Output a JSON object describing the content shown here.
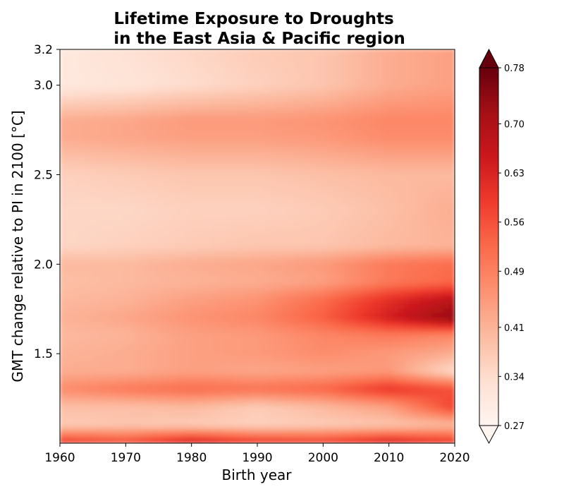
{
  "chart_data": {
    "type": "heatmap",
    "title_lines": [
      "Lifetime Exposure to Droughts",
      "in the East Asia & Pacific region"
    ],
    "xlabel": "Birth year",
    "ylabel": "GMT change relative to PI in 2100 [°C]",
    "x_range": [
      1960,
      2020
    ],
    "y_range": [
      1.0,
      3.2
    ],
    "x_ticks": [
      1960,
      1970,
      1980,
      1990,
      2000,
      2010,
      2020
    ],
    "y_ticks": [
      "1.5",
      "2.0",
      "2.5",
      "3.0",
      "3.2"
    ],
    "colorbar": {
      "colormap": "Reds",
      "ticks": [
        "0.27",
        "0.34",
        "0.41",
        "0.49",
        "0.56",
        "0.63",
        "0.70",
        "0.78"
      ],
      "vmin": 0.27,
      "vmax": 0.78,
      "extend": "both",
      "orientation": "vertical",
      "position": "right"
    },
    "birth_years": [
      1960,
      1970,
      1980,
      1990,
      2000,
      2010,
      2020
    ],
    "gmt_levels": [
      1.0,
      1.1,
      1.2,
      1.3,
      1.4,
      1.5,
      1.6,
      1.7,
      1.8,
      1.9,
      2.0,
      2.1,
      2.3,
      2.5,
      2.7,
      2.8,
      3.0,
      3.2
    ],
    "values": [
      [
        0.6,
        0.57,
        0.65,
        0.6,
        0.59,
        0.64,
        0.6
      ],
      [
        0.37,
        0.38,
        0.37,
        0.36,
        0.37,
        0.38,
        0.4
      ],
      [
        0.39,
        0.39,
        0.4,
        0.37,
        0.4,
        0.44,
        0.58
      ],
      [
        0.47,
        0.5,
        0.52,
        0.51,
        0.53,
        0.6,
        0.56
      ],
      [
        0.42,
        0.42,
        0.44,
        0.43,
        0.44,
        0.45,
        0.34
      ],
      [
        0.41,
        0.42,
        0.44,
        0.45,
        0.47,
        0.45,
        0.42
      ],
      [
        0.4,
        0.41,
        0.44,
        0.45,
        0.48,
        0.5,
        0.48
      ],
      [
        0.41,
        0.43,
        0.46,
        0.48,
        0.54,
        0.64,
        0.74
      ],
      [
        0.4,
        0.41,
        0.44,
        0.46,
        0.52,
        0.61,
        0.68
      ],
      [
        0.39,
        0.4,
        0.41,
        0.42,
        0.44,
        0.5,
        0.53
      ],
      [
        0.4,
        0.4,
        0.42,
        0.43,
        0.45,
        0.5,
        0.52
      ],
      [
        0.35,
        0.36,
        0.37,
        0.38,
        0.38,
        0.4,
        0.41
      ],
      [
        0.35,
        0.35,
        0.36,
        0.36,
        0.37,
        0.39,
        0.42
      ],
      [
        0.36,
        0.37,
        0.38,
        0.38,
        0.39,
        0.4,
        0.4
      ],
      [
        0.42,
        0.43,
        0.44,
        0.44,
        0.45,
        0.47,
        0.47
      ],
      [
        0.42,
        0.43,
        0.45,
        0.45,
        0.46,
        0.48,
        0.48
      ],
      [
        0.31,
        0.32,
        0.34,
        0.36,
        0.38,
        0.42,
        0.44
      ],
      [
        0.31,
        0.33,
        0.35,
        0.37,
        0.38,
        0.42,
        0.44
      ]
    ]
  }
}
